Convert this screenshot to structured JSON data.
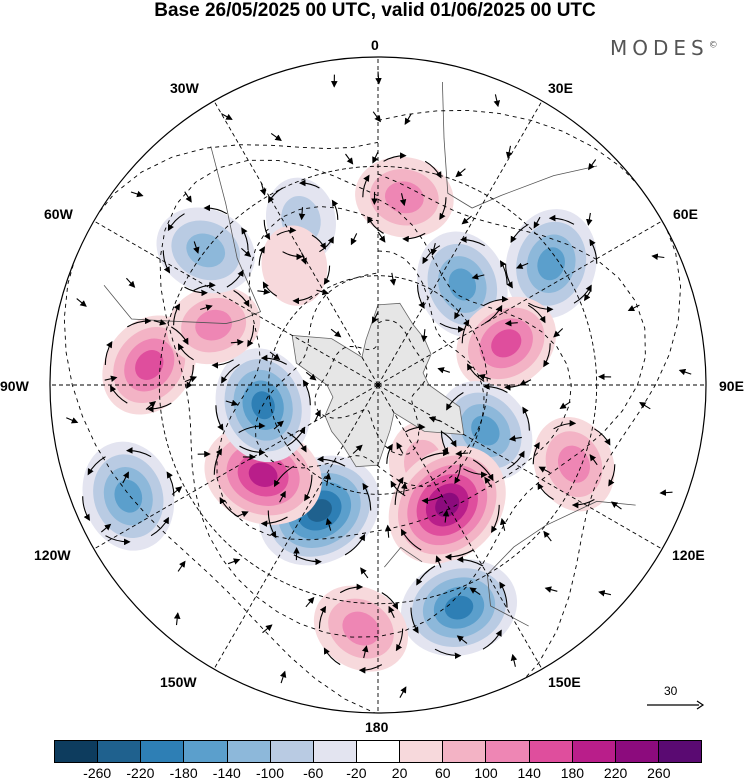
{
  "title": "Base 26/05/2025 00 UTC, valid 01/06/2025 00 UTC",
  "brand": {
    "name": "MODES",
    "mark": "©"
  },
  "longitude_labels": {
    "top": "0",
    "top_right": "30E",
    "upper_right": "60E",
    "right": "90E",
    "lower_right": "120E",
    "bottom_right": "150E",
    "bottom": "180",
    "bottom_left": "150W",
    "lower_left": "120W",
    "left": "90W",
    "upper_left": "60W",
    "top_left": "30W"
  },
  "vector_scale": {
    "value": "30",
    "icon": "arrow-right-icon"
  },
  "colorbar": {
    "ticks": [
      "-260",
      "-220",
      "-180",
      "-140",
      "-100",
      "-60",
      "-20",
      "20",
      "60",
      "100",
      "140",
      "180",
      "220",
      "260"
    ],
    "colors": [
      "#0d3c5e",
      "#1f618e",
      "#2e7fb5",
      "#5b9fcc",
      "#8db8da",
      "#b9cbe3",
      "#e3e4f0",
      "#ffffff",
      "#f7d9dc",
      "#f3b3c5",
      "#ee86b4",
      "#df4e9d",
      "#b91e8a",
      "#8c0b7d",
      "#5a0a72"
    ]
  },
  "anomaly_centers": [
    {
      "lon_deg": 8,
      "colat_deg": 52,
      "value": 120
    },
    {
      "lon_deg": 40,
      "colat_deg": 36,
      "value": -160
    },
    {
      "lon_deg": 55,
      "colat_deg": 58,
      "value": -170
    },
    {
      "lon_deg": 72,
      "colat_deg": 37,
      "value": 150
    },
    {
      "lon_deg": 150,
      "colat_deg": 25,
      "value": 60
    },
    {
      "lon_deg": 113,
      "colat_deg": 32,
      "value": -150
    },
    {
      "lon_deg": 112,
      "colat_deg": 58,
      "value": 110
    },
    {
      "lon_deg": 150,
      "colat_deg": 38,
      "value": 250
    },
    {
      "lon_deg": 160,
      "colat_deg": 65,
      "value": -200
    },
    {
      "lon_deg": 184,
      "colat_deg": 67,
      "value": 120
    },
    {
      "lon_deg": -155,
      "colat_deg": 38,
      "value": -240
    },
    {
      "lon_deg": -128,
      "colat_deg": 40,
      "value": 210
    },
    {
      "lon_deg": -100,
      "colat_deg": 32,
      "value": -190
    },
    {
      "lon_deg": -114,
      "colat_deg": 75,
      "value": -170
    },
    {
      "lon_deg": -85,
      "colat_deg": 63,
      "value": 150
    },
    {
      "lon_deg": -70,
      "colat_deg": 48,
      "value": 100
    },
    {
      "lon_deg": -52,
      "colat_deg": 60,
      "value": -130
    },
    {
      "lon_deg": -25,
      "colat_deg": 50,
      "value": -60
    },
    {
      "lon_deg": -35,
      "colat_deg": 40,
      "value": 40
    }
  ]
}
